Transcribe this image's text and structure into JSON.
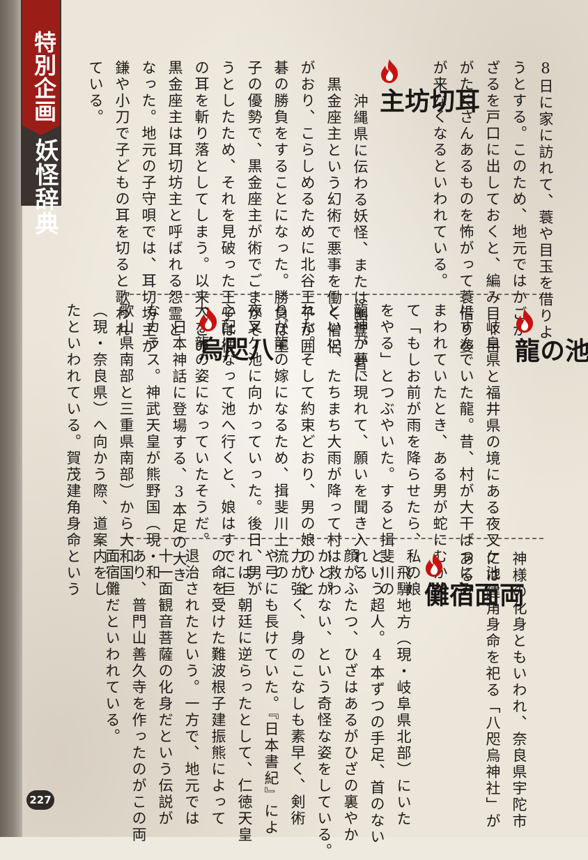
{
  "header": {
    "category": "特別企画",
    "subtitle": "妖怪辞典"
  },
  "page_number": "227",
  "entries": [
    {
      "id": "mimikiri",
      "title": "耳切坊主",
      "columns": [
        "沖縄県に伝わる妖怪、または幽霊。昔、",
        "黒金座主という幻術で悪事を働く僧侶",
        "がおり、こらしめるために北谷王子が囲",
        "碁の勝負をすることになった。勝負は王",
        "子の優勢で、黒金座主が術でごまかそ",
        "うとしたため、それを見破った王子は彼",
        "の耳を斬り落としてしまう。以来、この",
        "黒金座主は耳切坊主と呼ばれる怨霊と",
        "なった。地元の子守唄では、耳切坊主が",
        "鎌や小刀で子どもの耳を切ると歌われ",
        "ている。"
      ]
    },
    {
      "id": "prev-continued",
      "columns": [
        "8日に家に訪れて、蓑や目玉を借りよ",
        "うとする。このため、地元ではかごか、",
        "ざるを戸口に出しておくと、編み目＝目",
        "がたくさんあるものを怖がって蓑借り婆",
        "が来なくなるといわれている。"
      ]
    },
    {
      "id": "yashagaike",
      "title": "夜叉ケ池の龍",
      "columns": [
        "岐阜県と福井県の境にある夜叉ケ池",
        "にすんでいた龍。昔、村が大干ばつにみ",
        "まわれていたとき、ある男が蛇にむかっ",
        "て「もしお前が雨を降らせたら、私の娘",
        "をやる」とつぶやいた。すると揖斐川の",
        "龍神が夢に現れて、願いを聞き入れる",
        "といい、たちまち大雨が降って村は救わ",
        "れた。そして約束どおり、男の娘のひと",
        "りが龍の嫁になるため、揖斐川上流の",
        "夜叉ケ池に向かっていった。後日、男が",
        "心配になって池へ行くと、娘はすでに巨",
        "大な龍の姿になっていたそうだ。"
      ]
    },
    {
      "id": "yatagarasu",
      "title": "八咫烏",
      "columns": [
        "日本神話に登場する、3本足の大き",
        "なカラス。神武天皇が熊野国（現・和",
        "歌山県南部と三重県南部）から大和国",
        "（現・奈良県）へ向かう際、道案内をし",
        "たといわれている。賀茂建角身命という"
      ]
    },
    {
      "id": "yatagarasu-cont",
      "columns": [
        "神様の化身ともいわれ、奈良県宇陀市",
        "には建角身命を祀る「八咫烏神社」が",
        "ある。"
      ]
    },
    {
      "id": "ryomensukuna",
      "title": "両面宿儺",
      "columns": [
        "飛騨地方（現・岐阜県北部）にいた",
        "という超人。4本ずつの手足、首のない",
        "顔がふたつ、ひざはあるがひざの裏やか",
        "かとがない、という奇怪な姿をしている。",
        "力が強く、身のこなしも素早く、剣術",
        "や弓にも長けていた。『日本書紀』によ",
        "れば、朝廷に逆らったとして、仁徳天皇",
        "の命を受けた難波根子建振熊によって",
        "退治されたという。一方で、地元では",
        "十一面観音菩薩の化身だという伝説が",
        "あり、普門山善久寺を作ったのがこの両",
        "面宿儺だといわれている。"
      ]
    }
  ]
}
